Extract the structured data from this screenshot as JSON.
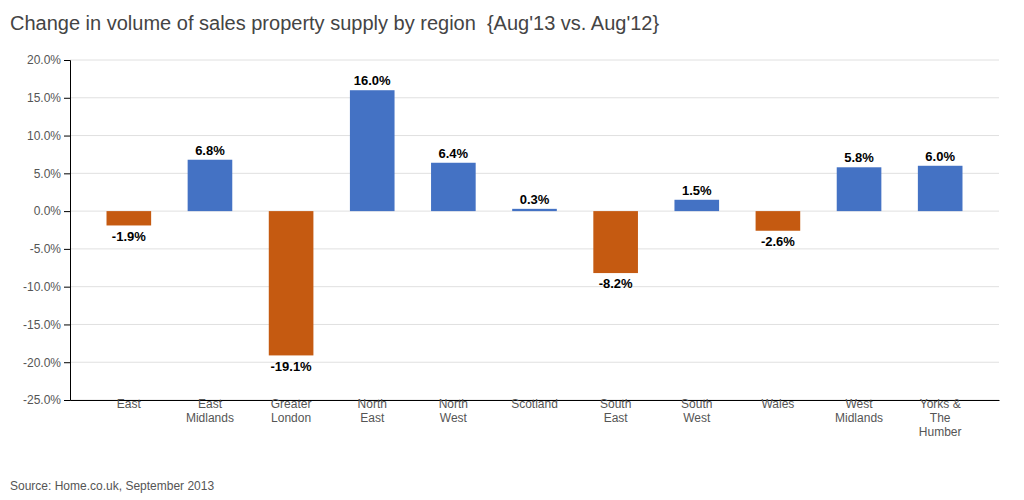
{
  "chart_data": {
    "type": "bar",
    "title": "Change in volume of sales property supply by region  {Aug'13 vs. Aug'12}",
    "categories": [
      "East",
      "East\nMidlands",
      "Greater\nLondon",
      "North\nEast",
      "North\nWest",
      "Scotland",
      "South\nEast",
      "South\nWest",
      "Wales",
      "West\nMidlands",
      "Yorks &\nThe\nHumber"
    ],
    "values": [
      -1.9,
      6.8,
      -19.1,
      16.0,
      6.4,
      0.3,
      -8.2,
      1.5,
      -2.6,
      5.8,
      6.0
    ],
    "value_labels": [
      "-1.9%",
      "6.8%",
      "-19.1%",
      "16.0%",
      "6.4%",
      "0.3%",
      "-8.2%",
      "1.5%",
      "-2.6%",
      "5.8%",
      "6.0%"
    ],
    "colors": [
      "#C55A11",
      "#4472C4",
      "#C55A11",
      "#4472C4",
      "#4472C4",
      "#4472C4",
      "#C55A11",
      "#4472C4",
      "#C55A11",
      "#4472C4",
      "#4472C4"
    ],
    "ylim": [
      -25.0,
      20.0
    ],
    "yticks": [
      {
        "value": -25.0,
        "label": "-25.0%"
      },
      {
        "value": -20.0,
        "label": "-20.0%"
      },
      {
        "value": -15.0,
        "label": "-15.0%"
      },
      {
        "value": -10.0,
        "label": "-10.0%"
      },
      {
        "value": -5.0,
        "label": "-5.0%"
      },
      {
        "value": 0.0,
        "label": "0.0%"
      },
      {
        "value": 5.0,
        "label": "5.0%"
      },
      {
        "value": 10.0,
        "label": "10.0%"
      },
      {
        "value": 15.0,
        "label": "15.0%"
      },
      {
        "value": 20.0,
        "label": "20.0%"
      }
    ],
    "grid": true,
    "data_labels": true,
    "annotations": [
      "Source: Home.co.uk, September 2013"
    ]
  }
}
